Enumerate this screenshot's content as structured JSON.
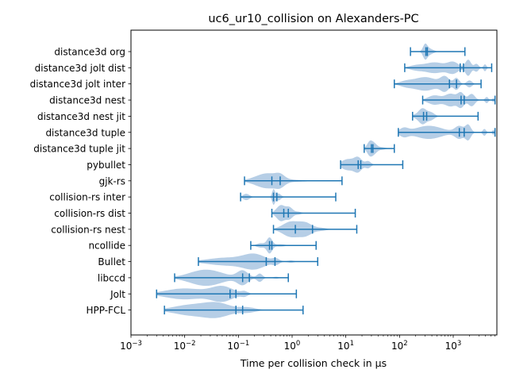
{
  "chart_data": {
    "type": "violin",
    "title": "uc6_ur10_collision on Alexanders-PC",
    "xlabel": "Time per collision check in µs",
    "ylabel": "",
    "xscale": "log",
    "xlim": [
      0.001,
      6500
    ],
    "x_ticks": [
      {
        "value": 0.001,
        "base": "10",
        "exp": "−3"
      },
      {
        "value": 0.01,
        "base": "10",
        "exp": "−2"
      },
      {
        "value": 0.1,
        "base": "10",
        "exp": "−1"
      },
      {
        "value": 1,
        "base": "10",
        "exp": "0"
      },
      {
        "value": 10,
        "base": "10",
        "exp": "1"
      },
      {
        "value": 100,
        "base": "10",
        "exp": "2"
      },
      {
        "value": 1000,
        "base": "10",
        "exp": "3"
      }
    ],
    "color": "#1f77b4",
    "violin_fill": "#aec9e3",
    "series": [
      {
        "name": "distance3d org",
        "min": 160,
        "max": 1650,
        "mean": 330,
        "median": 310,
        "bumps": [
          [
            300,
            0.45,
            0.04
          ],
          [
            360,
            0.2,
            0.07
          ]
        ]
      },
      {
        "name": "distance3d jolt dist",
        "min": 125,
        "max": 5200,
        "mean": 1550,
        "median": 1350,
        "bumps": [
          [
            200,
            0.12,
            0.12
          ],
          [
            450,
            0.3,
            0.18
          ],
          [
            1000,
            0.3,
            0.1
          ],
          [
            1900,
            0.45,
            0.05
          ],
          [
            2700,
            0.22,
            0.04
          ],
          [
            3900,
            0.2,
            0.025
          ]
        ]
      },
      {
        "name": "distance3d jolt inter",
        "min": 80,
        "max": 3300,
        "mean": 1150,
        "median": 850,
        "bumps": [
          [
            130,
            0.12,
            0.12
          ],
          [
            300,
            0.35,
            0.2
          ],
          [
            700,
            0.35,
            0.08
          ],
          [
            1150,
            0.3,
            0.05
          ],
          [
            2000,
            0.18,
            0.05
          ]
        ]
      },
      {
        "name": "distance3d nest",
        "min": 270,
        "max": 6000,
        "mean": 1600,
        "median": 1400,
        "bumps": [
          [
            450,
            0.3,
            0.12
          ],
          [
            900,
            0.4,
            0.1
          ],
          [
            1400,
            0.45,
            0.06
          ],
          [
            2200,
            0.4,
            0.06
          ],
          [
            4200,
            0.2,
            0.03
          ],
          [
            5600,
            0.12,
            0.02
          ]
        ]
      },
      {
        "name": "distance3d nest jit",
        "min": 175,
        "max": 2900,
        "mean": 320,
        "median": 280,
        "bumps": [
          [
            270,
            0.42,
            0.07
          ],
          [
            390,
            0.2,
            0.06
          ],
          [
            250,
            0.12,
            0.15
          ]
        ]
      },
      {
        "name": "distance3d tuple",
        "min": 95,
        "max": 6000,
        "mean": 1600,
        "median": 1300,
        "bumps": [
          [
            120,
            0.22,
            0.08
          ],
          [
            350,
            0.38,
            0.25
          ],
          [
            1300,
            0.35,
            0.08
          ],
          [
            1900,
            0.42,
            0.05
          ],
          [
            3800,
            0.2,
            0.03
          ],
          [
            5600,
            0.15,
            0.02
          ]
        ]
      },
      {
        "name": "distance3d tuple jit",
        "min": 22,
        "max": 80,
        "mean": 32,
        "median": 30,
        "bumps": [
          [
            28,
            0.42,
            0.05
          ],
          [
            34,
            0.25,
            0.05
          ],
          [
            45,
            0.08,
            0.08
          ]
        ]
      },
      {
        "name": "pybullet",
        "min": 8,
        "max": 115,
        "mean": 19,
        "median": 17,
        "bumps": [
          [
            11,
            0.35,
            0.12
          ],
          [
            17,
            0.4,
            0.07
          ],
          [
            26,
            0.22,
            0.05
          ]
        ]
      },
      {
        "name": "gjk-rs",
        "min": 0.13,
        "max": 8.5,
        "mean": 0.6,
        "median": 0.42,
        "bumps": [
          [
            0.35,
            0.45,
            0.22
          ],
          [
            0.6,
            0.2,
            0.08
          ],
          [
            1.5,
            0.04,
            0.2
          ]
        ]
      },
      {
        "name": "collision-rs inter",
        "min": 0.11,
        "max": 6.5,
        "mean": 0.52,
        "median": 0.45,
        "bumps": [
          [
            0.14,
            0.18,
            0.06
          ],
          [
            0.45,
            0.42,
            0.025
          ],
          [
            0.55,
            0.2,
            0.05
          ]
        ]
      },
      {
        "name": "collision-rs dist",
        "min": 0.42,
        "max": 15,
        "mean": 0.85,
        "median": 0.7,
        "bumps": [
          [
            0.62,
            0.45,
            0.08
          ],
          [
            0.9,
            0.3,
            0.06
          ],
          [
            1.3,
            0.08,
            0.06
          ]
        ]
      },
      {
        "name": "collision-rs nest",
        "min": 0.45,
        "max": 16,
        "mean": 2.4,
        "median": 1.15,
        "bumps": [
          [
            0.95,
            0.45,
            0.15
          ],
          [
            1.8,
            0.35,
            0.12
          ],
          [
            3.5,
            0.08,
            0.1
          ]
        ]
      },
      {
        "name": "ncollide",
        "min": 0.17,
        "max": 2.8,
        "mean": 0.42,
        "median": 0.38,
        "bumps": [
          [
            0.38,
            0.42,
            0.05
          ],
          [
            0.26,
            0.12,
            0.07
          ],
          [
            0.6,
            0.06,
            0.1
          ]
        ]
      },
      {
        "name": "Bullet",
        "min": 0.018,
        "max": 3.0,
        "mean": 0.48,
        "median": 0.33,
        "bumps": [
          [
            0.06,
            0.22,
            0.35
          ],
          [
            0.2,
            0.38,
            0.2
          ],
          [
            0.5,
            0.15,
            0.06
          ],
          [
            0.95,
            0.06,
            0.06
          ]
        ]
      },
      {
        "name": "libccd",
        "min": 0.0065,
        "max": 0.85,
        "mean": 0.16,
        "median": 0.12,
        "bumps": [
          [
            0.025,
            0.35,
            0.3
          ],
          [
            0.12,
            0.3,
            0.1
          ],
          [
            0.25,
            0.18,
            0.05
          ],
          [
            0.5,
            0.04,
            0.05
          ]
        ]
      },
      {
        "name": "Jolt",
        "min": 0.003,
        "max": 1.2,
        "mean": 0.09,
        "median": 0.07,
        "bumps": [
          [
            0.01,
            0.3,
            0.35
          ],
          [
            0.05,
            0.4,
            0.2
          ],
          [
            0.13,
            0.12,
            0.06
          ]
        ]
      },
      {
        "name": "HPP-FCL",
        "min": 0.0042,
        "max": 1.6,
        "mean": 0.12,
        "median": 0.09,
        "bumps": [
          [
            0.012,
            0.3,
            0.3
          ],
          [
            0.04,
            0.42,
            0.25
          ],
          [
            0.15,
            0.15,
            0.15
          ]
        ]
      }
    ]
  }
}
